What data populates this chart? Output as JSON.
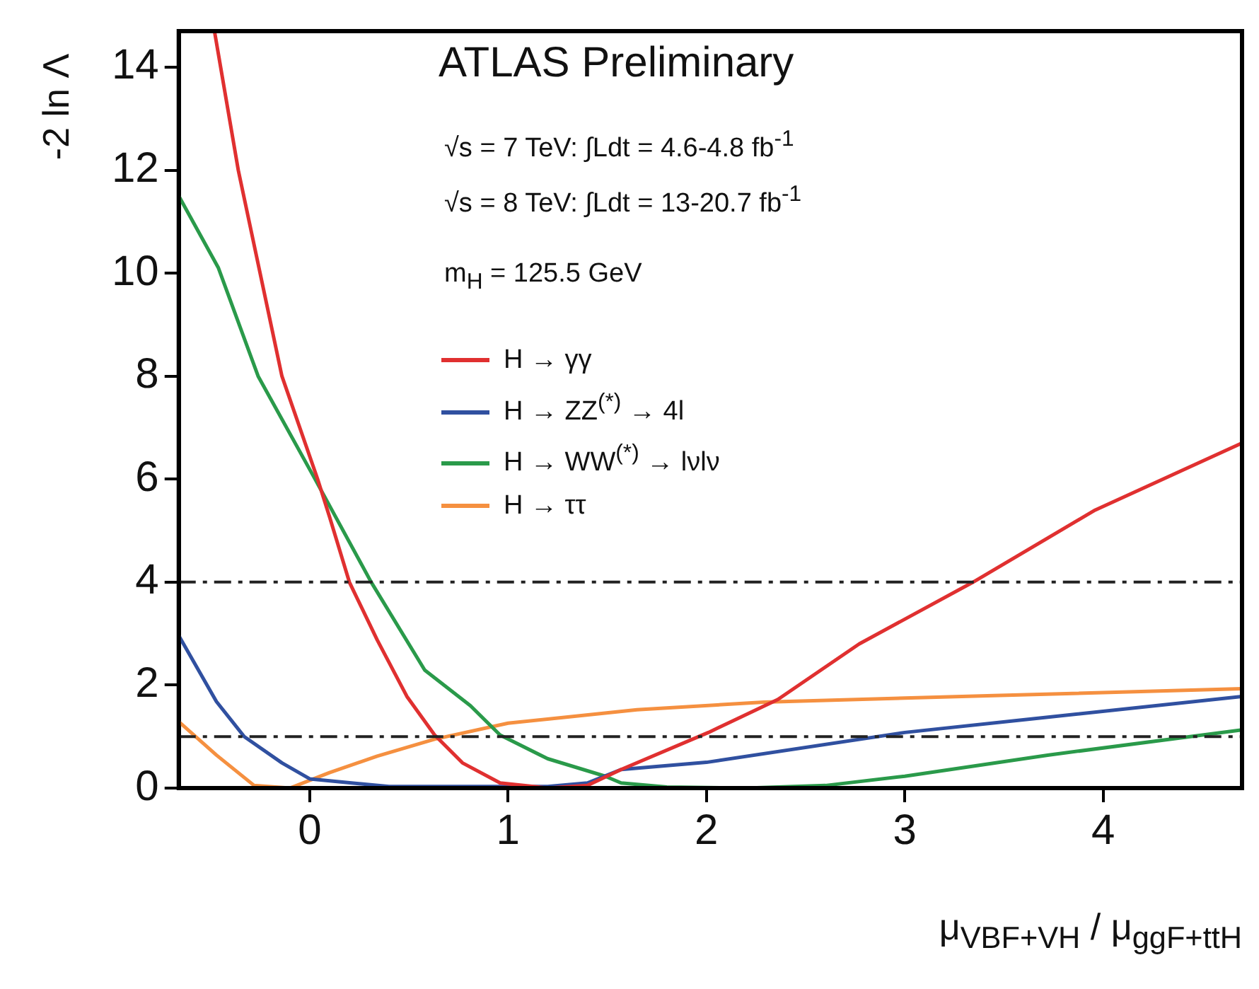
{
  "chart_data": {
    "type": "line",
    "title": "ATLAS Preliminary",
    "annotations": [
      "√s = 7 TeV:  ∫Ldt = 4.6-4.8 fb$^{-1}$",
      "√s = 8 TeV:  ∫Ldt = 13-20.7 fb$^{-1}$",
      "m$_{H}$ = 125.5 GeV"
    ],
    "xlabel": "μ$_{VBF+VH}$ / μ$_{ggF+ttH}$",
    "ylabel": "-2 ln Λ",
    "xlim": [
      -0.66,
      4.7
    ],
    "ylim": [
      0,
      14.7
    ],
    "xticks": [
      0,
      1,
      2,
      3,
      4
    ],
    "yticks": [
      0,
      2,
      4,
      6,
      8,
      10,
      12,
      14
    ],
    "grid": false,
    "legend": "left",
    "marker": "none",
    "line_style": "solid",
    "ref_lines": [
      {
        "axis": "y",
        "value": 1,
        "color": "#222222",
        "line_style": "dashed"
      },
      {
        "axis": "y",
        "value": 4,
        "color": "#222222",
        "line_style": "dashed"
      }
    ],
    "series": [
      {
        "name": "H → γγ",
        "color": "#e03030",
        "x": [
          -0.48,
          -0.36,
          -0.14,
          0.04,
          0.1,
          0.2,
          0.34,
          0.49,
          0.63,
          0.77,
          0.96,
          1.2,
          1.4,
          1.57,
          2.01,
          2.36,
          2.77,
          3.34,
          3.96,
          4.7
        ],
        "values": [
          14.7,
          12,
          8,
          6,
          5.27,
          4,
          2.88,
          1.78,
          1.03,
          0.49,
          0.1,
          0,
          0.05,
          0.36,
          1.08,
          1.72,
          2.8,
          3.99,
          5.4,
          6.7
        ]
      },
      {
        "name": "H → ZZ$^{(*)}$ → 4l",
        "color": "#3050a0",
        "x": [
          -0.66,
          -0.47,
          -0.33,
          -0.14,
          0,
          0.4,
          1.2,
          1.4,
          1.57,
          2.0,
          3.0,
          4.7
        ],
        "values": [
          2.96,
          1.68,
          1,
          0.49,
          0.18,
          0.03,
          0.03,
          0.1,
          0.36,
          0.5,
          1.08,
          1.78
        ]
      },
      {
        "name": "H → WW$^{(*)}$ → lνlν",
        "color": "#2a9a4a",
        "x": [
          -0.66,
          -0.46,
          -0.26,
          0.02,
          0.31,
          0.58,
          0.81,
          0.96,
          1.2,
          1.49,
          1.57,
          1.8,
          2.2,
          2.6,
          3.0,
          3.72,
          4.7
        ],
        "values": [
          11.5,
          10.1,
          8,
          6.05,
          4,
          2.29,
          1.6,
          1.03,
          0.57,
          0.23,
          0.1,
          0.02,
          0,
          0.05,
          0.23,
          0.64,
          1.13
        ]
      },
      {
        "name": "H → ττ",
        "color": "#f59040",
        "x": [
          -0.66,
          -0.47,
          -0.28,
          -0.1,
          0.1,
          0.34,
          0.63,
          1.0,
          1.65,
          2.29,
          3.48,
          4.7
        ],
        "values": [
          1.29,
          0.64,
          0.05,
          0,
          0.3,
          0.62,
          0.95,
          1.26,
          1.52,
          1.67,
          1.8,
          1.93
        ]
      }
    ]
  }
}
